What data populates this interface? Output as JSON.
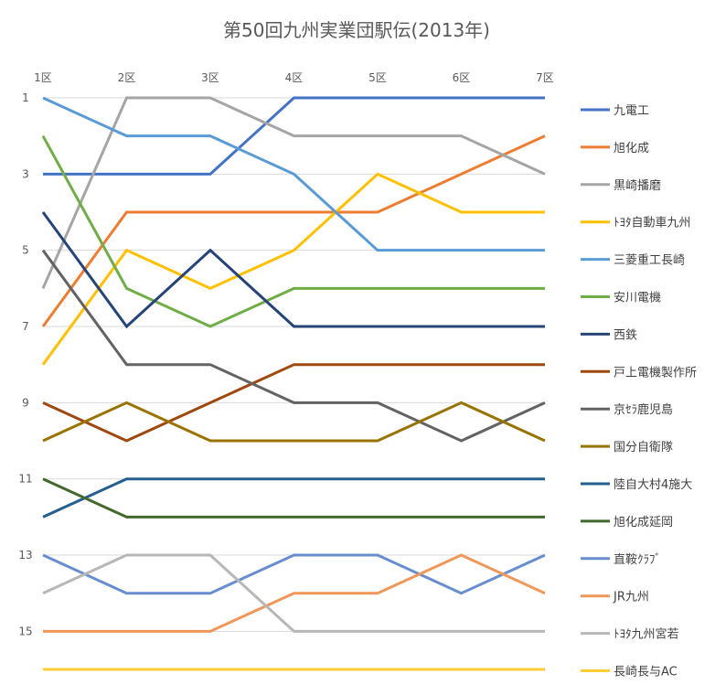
{
  "chart_data": {
    "type": "line",
    "title": "第50回九州実業団駅伝(2013年)",
    "categories": [
      "1区",
      "2区",
      "3区",
      "4区",
      "5区",
      "6区",
      "7区"
    ],
    "y_axis": {
      "reversed": true,
      "min": 1,
      "max": 16,
      "tick_labels": [
        "1",
        "3",
        "5",
        "7",
        "9",
        "11",
        "13",
        "15"
      ],
      "tick_values": [
        1,
        3,
        5,
        7,
        9,
        11,
        13,
        15
      ]
    },
    "x_axis_position": "top",
    "grid": true,
    "legend_position": "right",
    "series": [
      {
        "name": "九電工",
        "color": "#4472C4",
        "values": [
          3,
          3,
          3,
          1,
          1,
          1,
          1
        ]
      },
      {
        "name": "旭化成",
        "color": "#ED7D31",
        "values": [
          7,
          4,
          4,
          4,
          4,
          3,
          2
        ]
      },
      {
        "name": "黒崎播磨",
        "color": "#A5A5A5",
        "values": [
          6,
          1,
          1,
          2,
          2,
          2,
          3
        ]
      },
      {
        "name": "ﾄﾖﾀ自動車九州",
        "color": "#FFC000",
        "values": [
          8,
          5,
          6,
          5,
          3,
          4,
          4
        ]
      },
      {
        "name": "三菱重工長崎",
        "color": "#5B9BD5",
        "values": [
          1,
          2,
          2,
          3,
          5,
          5,
          5
        ]
      },
      {
        "name": "安川電機",
        "color": "#70AD47",
        "values": [
          2,
          6,
          7,
          6,
          6,
          6,
          6
        ]
      },
      {
        "name": "西鉄",
        "color": "#264478",
        "values": [
          4,
          7,
          5,
          7,
          7,
          7,
          7
        ]
      },
      {
        "name": "戸上電機製作所",
        "color": "#9E480E",
        "values": [
          9,
          10,
          9,
          8,
          8,
          8,
          8
        ]
      },
      {
        "name": "京ｾﾗ鹿児島",
        "color": "#636363",
        "values": [
          5,
          8,
          8,
          9,
          9,
          10,
          9
        ]
      },
      {
        "name": "国分自衛隊",
        "color": "#997300",
        "values": [
          10,
          9,
          10,
          10,
          10,
          9,
          10
        ]
      },
      {
        "name": "陸自大村4施大",
        "color": "#255E91",
        "values": [
          12,
          11,
          11,
          11,
          11,
          11,
          11
        ]
      },
      {
        "name": "旭化成延岡",
        "color": "#43682B",
        "values": [
          11,
          12,
          12,
          12,
          12,
          12,
          12
        ]
      },
      {
        "name": "直鞍ｸﾗﾌﾞ",
        "color": "#698ED0",
        "values": [
          13,
          14,
          14,
          13,
          13,
          14,
          13
        ]
      },
      {
        "name": "JR九州",
        "color": "#F1975A",
        "values": [
          15,
          15,
          15,
          14,
          14,
          13,
          14
        ]
      },
      {
        "name": "ﾄﾖﾀ九州宮若",
        "color": "#B7B7B7",
        "values": [
          14,
          13,
          13,
          15,
          15,
          15,
          15
        ]
      },
      {
        "name": "長崎長与AC",
        "color": "#FFCD33",
        "values": [
          16,
          16,
          16,
          16,
          16,
          16,
          16
        ]
      }
    ]
  }
}
